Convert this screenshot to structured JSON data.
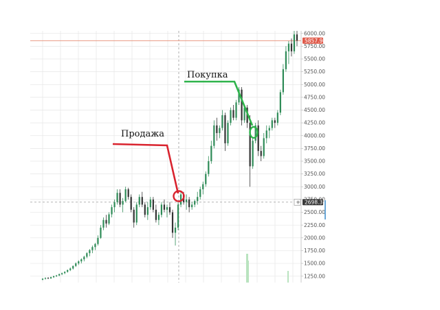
{
  "chart_data": {
    "type": "candlestick",
    "grid": true,
    "y_axis_position": "right",
    "ylim": [
      1125,
      6050
    ],
    "y_ticks": [
      "6000.00",
      "5750.00",
      "5500.00",
      "5250.00",
      "5000.00",
      "4750.00",
      "4500.00",
      "4250.00",
      "4000.00",
      "3750.00",
      "3500.00",
      "3250.00",
      "3000.00",
      "2750.00",
      "2500.00",
      "2250.00",
      "2000.00",
      "1750.00",
      "1500.00",
      "1250.00"
    ],
    "price_tag_top": {
      "label": "5857.94",
      "value": 5857.94,
      "color": "#e05a4a"
    },
    "price_tag_crosshair": {
      "label": "2698.31",
      "value": 2698.31,
      "color": "#3a3a3a"
    },
    "colors": {
      "up": "#2e8b57",
      "down": "#333333",
      "sell": "#d9232e",
      "buy": "#2db34a",
      "grid": "#e6e6e6"
    },
    "annotations": [
      {
        "label": "Продажа",
        "kind": "sell",
        "value": 2790
      },
      {
        "label": "Покупка",
        "kind": "buy",
        "value": 4070
      }
    ],
    "candles": [
      [
        1180,
        1210,
        1170,
        1200
      ],
      [
        1200,
        1225,
        1185,
        1215
      ],
      [
        1215,
        1230,
        1195,
        1205
      ],
      [
        1205,
        1240,
        1200,
        1230
      ],
      [
        1230,
        1260,
        1215,
        1250
      ],
      [
        1250,
        1275,
        1235,
        1265
      ],
      [
        1265,
        1300,
        1250,
        1290
      ],
      [
        1290,
        1320,
        1270,
        1310
      ],
      [
        1310,
        1345,
        1290,
        1335
      ],
      [
        1335,
        1380,
        1320,
        1370
      ],
      [
        1370,
        1420,
        1350,
        1400
      ],
      [
        1400,
        1460,
        1380,
        1450
      ],
      [
        1450,
        1520,
        1430,
        1500
      ],
      [
        1500,
        1560,
        1470,
        1540
      ],
      [
        1540,
        1600,
        1500,
        1580
      ],
      [
        1580,
        1650,
        1540,
        1630
      ],
      [
        1630,
        1720,
        1600,
        1700
      ],
      [
        1700,
        1780,
        1640,
        1760
      ],
      [
        1760,
        1850,
        1700,
        1820
      ],
      [
        1820,
        1900,
        1760,
        1880
      ],
      [
        1880,
        2050,
        1850,
        2000
      ],
      [
        2000,
        2250,
        1980,
        2200
      ],
      [
        2200,
        2400,
        2150,
        2350
      ],
      [
        2350,
        2450,
        2200,
        2280
      ],
      [
        2280,
        2500,
        2250,
        2460
      ],
      [
        2460,
        2650,
        2400,
        2600
      ],
      [
        2600,
        2750,
        2500,
        2700
      ],
      [
        2700,
        2950,
        2650,
        2880
      ],
      [
        2880,
        2950,
        2600,
        2650
      ],
      [
        2650,
        2780,
        2500,
        2720
      ],
      [
        2720,
        3000,
        2700,
        2950
      ],
      [
        2950,
        2980,
        2750,
        2800
      ],
      [
        2800,
        2850,
        2500,
        2550
      ],
      [
        2550,
        2600,
        2200,
        2300
      ],
      [
        2300,
        2700,
        2250,
        2650
      ],
      [
        2650,
        2850,
        2600,
        2800
      ],
      [
        2800,
        2900,
        2600,
        2650
      ],
      [
        2650,
        2700,
        2400,
        2450
      ],
      [
        2450,
        2700,
        2350,
        2600
      ],
      [
        2600,
        2800,
        2550,
        2750
      ],
      [
        2750,
        2800,
        2500,
        2550
      ],
      [
        2550,
        2650,
        2300,
        2350
      ],
      [
        2350,
        2500,
        2250,
        2450
      ],
      [
        2450,
        2700,
        2400,
        2650
      ],
      [
        2650,
        2750,
        2500,
        2550
      ],
      [
        2550,
        2650,
        2400,
        2600
      ],
      [
        2600,
        2700,
        2450,
        2500
      ],
      [
        2500,
        2550,
        2000,
        2100
      ],
      [
        2100,
        2300,
        1850,
        2200
      ],
      [
        2200,
        2700,
        2150,
        2650
      ],
      [
        2650,
        2900,
        2600,
        2850
      ],
      [
        2850,
        2900,
        2650,
        2700
      ],
      [
        2700,
        2850,
        2550,
        2750
      ],
      [
        2750,
        2800,
        2500,
        2600
      ],
      [
        2600,
        2700,
        2550,
        2650
      ],
      [
        2650,
        2750,
        2600,
        2720
      ],
      [
        2720,
        2900,
        2650,
        2800
      ],
      [
        2800,
        3000,
        2750,
        2950
      ],
      [
        2950,
        3100,
        2850,
        3050
      ],
      [
        3050,
        3300,
        3000,
        3250
      ],
      [
        3250,
        3600,
        3200,
        3500
      ],
      [
        3500,
        3900,
        3450,
        3800
      ],
      [
        3800,
        4300,
        3750,
        4200
      ],
      [
        4200,
        4350,
        3900,
        4050
      ],
      [
        4050,
        4200,
        3950,
        4150
      ],
      [
        4150,
        4500,
        4100,
        4400
      ],
      [
        4400,
        4450,
        3700,
        3850
      ],
      [
        3850,
        4300,
        3800,
        4250
      ],
      [
        4250,
        4550,
        4200,
        4500
      ],
      [
        4500,
        4600,
        4300,
        4350
      ],
      [
        4350,
        4700,
        4300,
        4650
      ],
      [
        4650,
        4950,
        4600,
        4900
      ],
      [
        4900,
        4950,
        4200,
        4300
      ],
      [
        4300,
        4600,
        4250,
        4550
      ],
      [
        4550,
        4600,
        4150,
        4250
      ],
      [
        4250,
        4400,
        3000,
        3400
      ],
      [
        3400,
        3950,
        3350,
        3900
      ],
      [
        3900,
        4250,
        3850,
        4200
      ],
      [
        4200,
        4300,
        3600,
        3700
      ],
      [
        3700,
        3800,
        3500,
        3600
      ],
      [
        3600,
        4050,
        3550,
        3950
      ],
      [
        3950,
        4200,
        3850,
        4100
      ],
      [
        4100,
        4200,
        3950,
        4150
      ],
      [
        4150,
        4350,
        4100,
        4300
      ],
      [
        4300,
        4350,
        4150,
        4250
      ],
      [
        4250,
        4500,
        4200,
        4450
      ],
      [
        4450,
        4900,
        4400,
        4850
      ],
      [
        4850,
        5400,
        4800,
        5300
      ],
      [
        5300,
        5750,
        5250,
        5650
      ],
      [
        5650,
        5850,
        5400,
        5800
      ],
      [
        5800,
        5900,
        5550,
        5650
      ],
      [
        5650,
        6050,
        5600,
        5980
      ],
      [
        5980,
        6050,
        5750,
        5857.94
      ]
    ]
  }
}
